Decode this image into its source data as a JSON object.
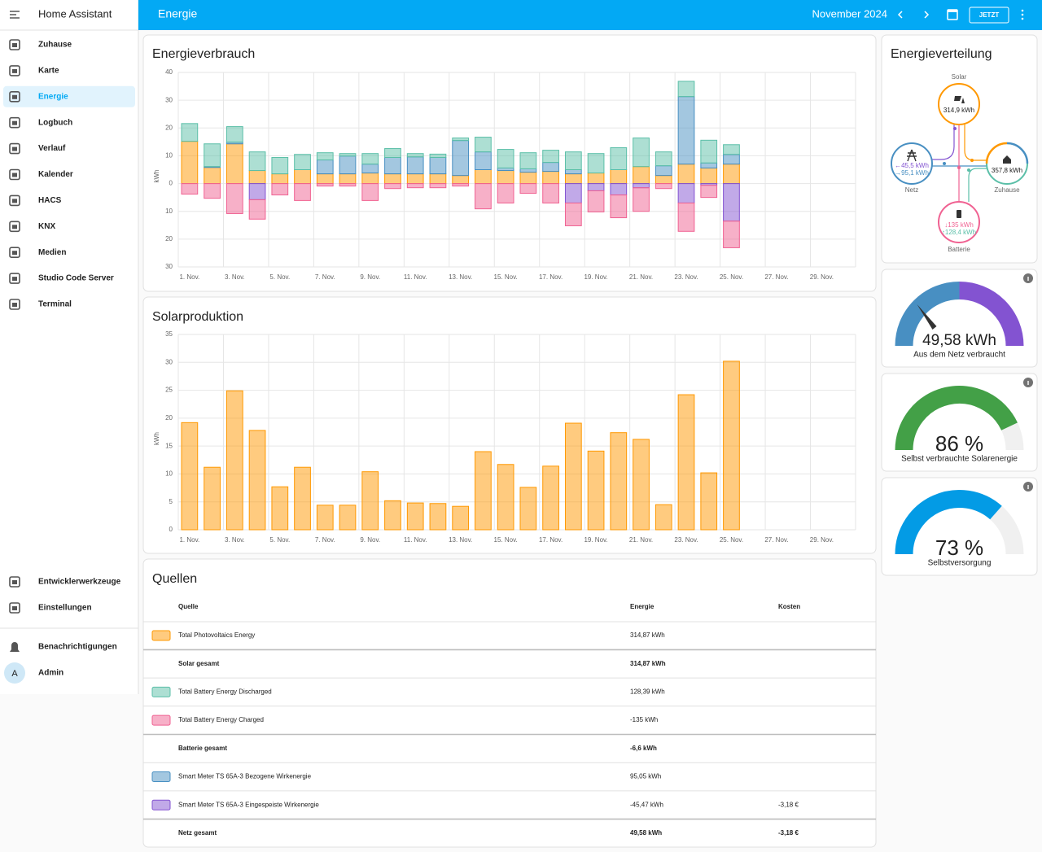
{
  "sidebar": {
    "title": "Home Assistant",
    "items": [
      "Zuhause",
      "Karte",
      "Energie",
      "Logbuch",
      "Verlauf",
      "Kalender",
      "HACS",
      "KNX",
      "Medien",
      "Studio Code Server",
      "Terminal"
    ],
    "selected": "Energie",
    "bottom_items": [
      "Entwicklerwerkzeuge",
      "Einstellungen"
    ],
    "notifications": "Benachrichtigungen",
    "user": {
      "initial": "A",
      "name": "Admin"
    }
  },
  "header": {
    "title": "Energie",
    "period": "November 2024",
    "now_button": "JETZT"
  },
  "consumption": {
    "title": "Energieverbrauch",
    "chart": {
      "type": "bar",
      "stacked": true,
      "y_label": "kWh",
      "categories": [
        "1. Nov.",
        null,
        "3. Nov.",
        null,
        "5. Nov.",
        null,
        "7. Nov.",
        null,
        "9. Nov.",
        null,
        "11. Nov.",
        null,
        "13. Nov.",
        null,
        "15. Nov.",
        null,
        "17. Nov.",
        null,
        "19. Nov.",
        null,
        "21. Nov.",
        null,
        "23. Nov.",
        null,
        "25. Nov.",
        null,
        "27. Nov.",
        null,
        "29. Nov.",
        null
      ],
      "series": [
        {
          "color": "#ff9800",
          "values": [
            15.2,
            5.8,
            14.3,
            4.7,
            3.5,
            5.0,
            3.5,
            3.5,
            3.8,
            3.5,
            3.5,
            3.5,
            2.9,
            5.0,
            4.7,
            4.1,
            4.4,
            3.5,
            3.8,
            5.0,
            6.1,
            2.9,
            7.0,
            5.6,
            7.0,
            null,
            null,
            null,
            null,
            null
          ]
        },
        {
          "color": "#488fc2",
          "values": [
            0,
            0.3,
            0.6,
            0,
            0,
            0,
            5.0,
            6.4,
            3.2,
            5.9,
            6.1,
            5.9,
            12.6,
            6.4,
            0.9,
            1.2,
            3.2,
            1.5,
            0,
            0,
            0,
            3.5,
            24.3,
            1.8,
            3.5,
            null,
            null,
            null,
            null,
            null
          ]
        },
        {
          "color": "#5bbfa8",
          "values": [
            6.4,
            8.2,
            5.6,
            6.7,
            5.9,
            5.5,
            2.6,
            0.9,
            3.8,
            3.2,
            1.2,
            1.2,
            0.9,
            5.3,
            6.7,
            5.8,
            4.4,
            6.4,
            7.0,
            7.9,
            10.3,
            5.0,
            5.5,
            8.2,
            3.5,
            null,
            null,
            null,
            null,
            null
          ]
        },
        {
          "color": "#8353d1",
          "values": [
            0,
            0,
            0,
            -5.8,
            0,
            0,
            0,
            0,
            0,
            0,
            0,
            0,
            0,
            0,
            0,
            0,
            0,
            -7.0,
            -2.6,
            -4.1,
            -1.5,
            0,
            -7.0,
            -0.6,
            -13.5,
            null,
            null,
            null,
            null,
            null
          ]
        },
        {
          "color": "#f06292",
          "values": [
            -3.8,
            -5.3,
            -10.8,
            -7.0,
            -4.1,
            -6.1,
            -0.9,
            -0.9,
            -6.1,
            -1.8,
            -1.5,
            -1.5,
            -0.9,
            -9.1,
            -7.0,
            -3.5,
            -7.0,
            -8.2,
            -7.6,
            -8.2,
            -8.5,
            -1.8,
            -10.2,
            -4.4,
            -9.6,
            null,
            null,
            null,
            null,
            null
          ]
        }
      ],
      "ylim": [
        -30,
        40
      ],
      "yticks": [
        40,
        30,
        20,
        10,
        0,
        {
          "value": -10,
          "label": "10"
        },
        {
          "value": -20,
          "label": "20"
        },
        {
          "value": -30,
          "label": "30"
        }
      ],
      "grid": true
    }
  },
  "solar": {
    "title": "Solarproduktion",
    "chart": {
      "type": "bar",
      "stacked": true,
      "y_label": "kWh",
      "categories": [
        "1. Nov.",
        null,
        "3. Nov.",
        null,
        "5. Nov.",
        null,
        "7. Nov.",
        null,
        "9. Nov.",
        null,
        "11. Nov.",
        null,
        "13. Nov.",
        null,
        "15. Nov.",
        null,
        "17. Nov.",
        null,
        "19. Nov.",
        null,
        "21. Nov.",
        null,
        "23. Nov.",
        null,
        "25. Nov.",
        null,
        "27. Nov.",
        null,
        "29. Nov.",
        null
      ],
      "series": [
        {
          "color": "#ff9800",
          "values": [
            19.2,
            11.2,
            24.9,
            17.8,
            7.7,
            11.2,
            4.4,
            4.4,
            10.4,
            5.2,
            4.8,
            4.7,
            4.2,
            14.0,
            11.7,
            7.6,
            11.4,
            19.1,
            14.1,
            17.4,
            16.2,
            4.5,
            24.2,
            10.2,
            30.2,
            null,
            null,
            null,
            null,
            null
          ]
        }
      ],
      "ylim": [
        0,
        35
      ],
      "yticks": [
        0,
        5,
        10,
        15,
        20,
        25,
        30,
        35
      ],
      "grid": true
    }
  },
  "distribution": {
    "title": "Energieverteilung",
    "solar": {
      "label": "Solar",
      "value": "314,9 kWh"
    },
    "grid": {
      "label": "Netz",
      "returned": "←45,5 kWh",
      "consumed": "→95,1 kWh"
    },
    "home": {
      "label": "Zuhause",
      "value": "357,8 kWh"
    },
    "battery": {
      "label": "Batterie",
      "charged": "↓135 kWh",
      "discharged": "↑128,4 kWh"
    }
  },
  "gauges": [
    {
      "value_label": "49,58 kWh",
      "label": "Aus dem Netz verbraucht"
    },
    {
      "value": 86,
      "value_label": "86 %",
      "label": "Selbst verbrauchte Solarenergie",
      "range": [
        0,
        100
      ],
      "color": "#43a047"
    },
    {
      "value": 73,
      "value_label": "73 %",
      "label": "Selbstversorgung",
      "range": [
        0,
        100
      ],
      "color": "#039be5"
    }
  ],
  "sources": {
    "title": "Quellen",
    "columns": [
      "Quelle",
      "Energie",
      "Kosten"
    ],
    "rows": [
      {
        "color": "#ff9800",
        "source": "Total Photovoltaics Energy",
        "energy": "314,87 kWh"
      },
      {
        "total": true,
        "source": "Solar gesamt",
        "energy": "314,87 kWh"
      },
      {
        "color": "#5bbfa8",
        "source": "Total Battery Energy Discharged",
        "energy": "128,39 kWh"
      },
      {
        "color": "#f06292",
        "source": "Total Battery Energy Charged",
        "energy": "-135 kWh"
      },
      {
        "total": true,
        "source": "Batterie gesamt",
        "energy": "-6,6 kWh"
      },
      {
        "color": "#488fc2",
        "source": "Smart Meter TS 65A-3 Bezogene Wirkenergie",
        "energy": "95,05 kWh"
      },
      {
        "color": "#8353d1",
        "source": "Smart Meter TS 65A-3 Eingespeiste Wirkenergie",
        "energy": "-45,47 kWh",
        "cost": "-3,18 €"
      },
      {
        "total": true,
        "source": "Netz gesamt",
        "energy": "49,58 kWh",
        "cost": "-3,18 €"
      }
    ]
  }
}
